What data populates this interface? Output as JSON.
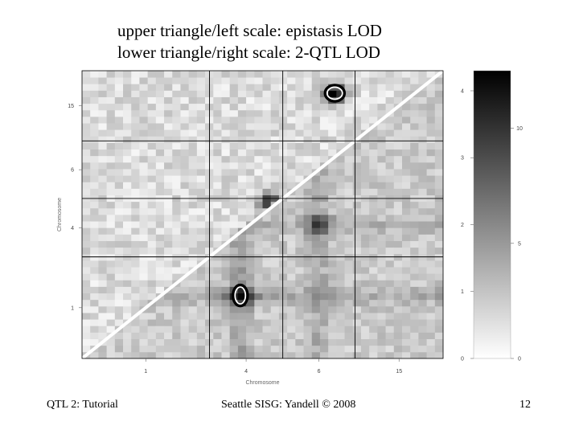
{
  "slide": {
    "title_line1": "upper triangle/left scale: epistasis LOD",
    "title_line2": "lower triangle/right scale: 2-QTL LOD",
    "footer_left": "QTL 2: Tutorial",
    "footer_center": "Seattle SISG: Yandell © 2008",
    "footer_right": "12"
  },
  "chart_data": {
    "type": "heatmap",
    "xlabel": "Chromosome",
    "ylabel": "Chromosome",
    "chromosomes": [
      "1",
      "4",
      "6",
      "15"
    ],
    "chromosome_fractions": [
      0.353,
      0.203,
      0.2,
      0.244
    ],
    "x_tick_labels": [
      "1",
      "4",
      "6",
      "15"
    ],
    "y_tick_labels": [
      "1",
      "4",
      "6",
      "15"
    ],
    "colorbar_left": {
      "label": "epistasis LOD",
      "ticks": [
        0,
        1,
        2,
        3,
        4
      ],
      "range": [
        0,
        4.3
      ]
    },
    "colorbar_right": {
      "label": "2-QTL LOD",
      "ticks": [
        0,
        5,
        10
      ],
      "range": [
        0,
        12.5
      ]
    },
    "colors": {
      "low": "#ffffff",
      "high": "#000000",
      "highlight_ring": "#000000"
    },
    "hotspots": [
      {
        "region": "upper",
        "x_chrom": "6",
        "x_pos": 0.72,
        "y_chrom": "15",
        "y_pos": 0.68,
        "lod": 4.0,
        "circled": true
      },
      {
        "region": "lower",
        "x_chrom": "4",
        "x_pos": 0.42,
        "y_chrom": "1",
        "y_pos": 0.62,
        "lod": 11.5,
        "circled": true
      },
      {
        "region": "lower",
        "x_chrom": "6",
        "x_pos": 0.5,
        "y_chrom": "4",
        "y_pos": 0.55,
        "lod": 8.0,
        "circled": false
      },
      {
        "region": "upper",
        "x_chrom": "4",
        "x_pos": 0.82,
        "y_chrom": "4",
        "y_pos": 0.93,
        "lod": 3.2,
        "circled": false
      }
    ]
  }
}
